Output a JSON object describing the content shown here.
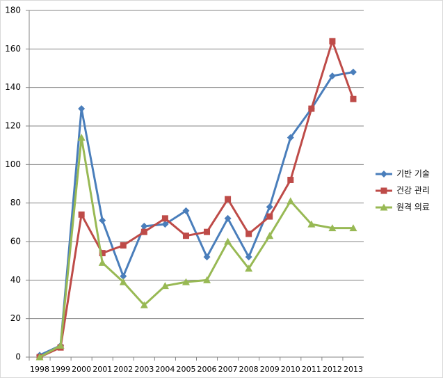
{
  "chart_data": {
    "type": "line",
    "categories": [
      "1998",
      "1999",
      "2000",
      "2001",
      "2002",
      "2003",
      "2004",
      "2005",
      "2006",
      "2007",
      "2008",
      "2009",
      "2010",
      "2011",
      "2012",
      "2013"
    ],
    "series": [
      {
        "name": "기반 기술",
        "color": "#4a7ebb",
        "marker": "diamond",
        "values": [
          1,
          6,
          129,
          71,
          42,
          68,
          69,
          76,
          52,
          72,
          52,
          78,
          114,
          129,
          146,
          148
        ]
      },
      {
        "name": "건강 관리",
        "color": "#be4b48",
        "marker": "square",
        "values": [
          0,
          5,
          74,
          54,
          58,
          65,
          72,
          63,
          65,
          82,
          64,
          73,
          92,
          129,
          164,
          134
        ]
      },
      {
        "name": "원격 의료",
        "color": "#98b954",
        "marker": "triangle",
        "values": [
          0,
          6,
          114,
          49,
          39,
          27,
          37,
          39,
          40,
          60,
          46,
          63,
          81,
          69,
          67,
          67
        ]
      }
    ],
    "ylim": [
      0,
      180
    ],
    "yticks": [
      0,
      20,
      40,
      60,
      80,
      100,
      120,
      140,
      160,
      180
    ],
    "grid": true,
    "legend": "right"
  }
}
